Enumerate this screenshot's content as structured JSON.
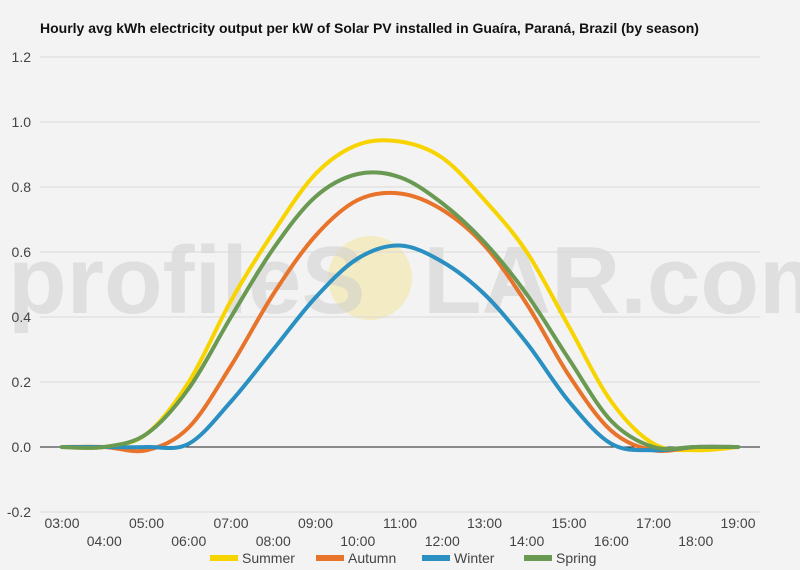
{
  "chart_data": {
    "type": "line",
    "title": "Hourly avg kWh electricity output per kW of Solar PV installed in Guaíra, Paraná, Brazil (by season)",
    "xlabel": "",
    "ylabel": "",
    "x": [
      "03:00",
      "04:00",
      "05:00",
      "06:00",
      "07:00",
      "08:00",
      "09:00",
      "10:00",
      "11:00",
      "12:00",
      "13:00",
      "14:00",
      "15:00",
      "16:00",
      "17:00",
      "18:00",
      "19:00"
    ],
    "x_tick_labels_upper": [
      "03:00",
      "05:00",
      "07:00",
      "09:00",
      "11:00",
      "13:00",
      "15:00",
      "17:00",
      "19:00"
    ],
    "x_tick_labels_lower": [
      "04:00",
      "06:00",
      "08:00",
      "10:00",
      "12:00",
      "14:00",
      "16:00",
      "18:00"
    ],
    "y_ticks": [
      "-0.2",
      "0.0",
      "0.2",
      "0.4",
      "0.6",
      "0.8",
      "1.0",
      "1.2"
    ],
    "ylim": [
      -0.2,
      1.2
    ],
    "grid": true,
    "legend_position": "bottom",
    "series": [
      {
        "name": "Summer",
        "color": "#f7d400",
        "values": [
          0.0,
          0.0,
          0.04,
          0.2,
          0.45,
          0.66,
          0.84,
          0.93,
          0.94,
          0.89,
          0.76,
          0.6,
          0.37,
          0.14,
          0.01,
          -0.01,
          0.0
        ]
      },
      {
        "name": "Autumn",
        "color": "#e8732a",
        "values": [
          0.0,
          0.0,
          -0.01,
          0.06,
          0.25,
          0.47,
          0.65,
          0.76,
          0.78,
          0.73,
          0.62,
          0.44,
          0.22,
          0.05,
          -0.01,
          0.0,
          0.0
        ]
      },
      {
        "name": "Winter",
        "color": "#2a8fc1",
        "values": [
          0.0,
          0.0,
          0.0,
          0.01,
          0.14,
          0.3,
          0.46,
          0.58,
          0.62,
          0.57,
          0.47,
          0.32,
          0.14,
          0.01,
          -0.01,
          0.0,
          0.0
        ]
      },
      {
        "name": "Spring",
        "color": "#6a9a52",
        "values": [
          0.0,
          0.0,
          0.04,
          0.18,
          0.4,
          0.61,
          0.77,
          0.84,
          0.83,
          0.75,
          0.63,
          0.47,
          0.27,
          0.08,
          0.0,
          0.0,
          0.0
        ]
      }
    ],
    "watermark": {
      "left": "profileS",
      "right": "LAR.com"
    },
    "gridline_color": "#d9d9d9",
    "zero_line_color": "#222222"
  }
}
